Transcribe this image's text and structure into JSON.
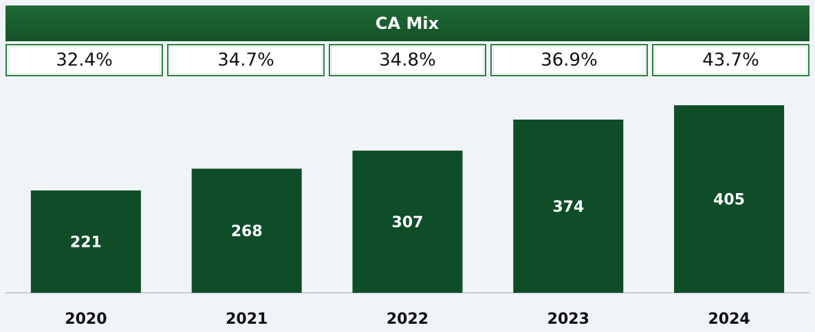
{
  "chart_data": {
    "type": "bar",
    "table_title": "CA Mix",
    "table_cells": [
      "32.4%",
      "34.7%",
      "34.8%",
      "36.9%",
      "43.7%"
    ],
    "categories": [
      "2020",
      "2021",
      "2022",
      "2023",
      "2024"
    ],
    "values": [
      221,
      268,
      307,
      374,
      405
    ],
    "color": "#0e4d28",
    "ylim": [
      0,
      440
    ]
  }
}
